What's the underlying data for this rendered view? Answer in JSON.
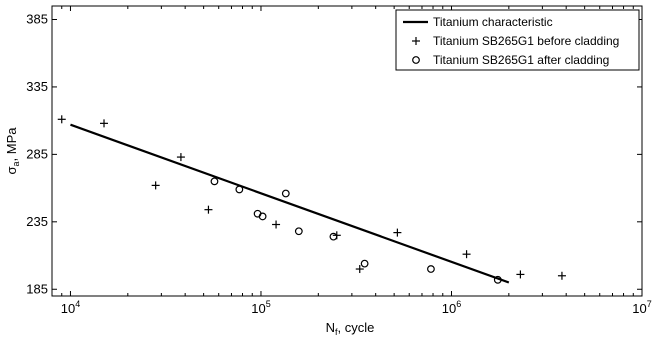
{
  "chart_data": {
    "type": "scatter",
    "xlabel": {
      "main": "N",
      "sub": "f",
      "rest": ", cycle"
    },
    "ylabel": {
      "main": "σ",
      "sub": "a",
      "rest": ", MPa"
    },
    "x_scale": "log",
    "xlim": [
      8000,
      10000000
    ],
    "ylim": [
      180,
      395
    ],
    "x_ticks": [
      {
        "value": 10000,
        "base": "10",
        "exp": "4"
      },
      {
        "value": 100000,
        "base": "10",
        "exp": "5"
      },
      {
        "value": 1000000,
        "base": "10",
        "exp": "6"
      },
      {
        "value": 10000000,
        "base": "10",
        "exp": "7"
      }
    ],
    "y_ticks": [
      185,
      235,
      285,
      335,
      385
    ],
    "grid": false,
    "legend_position": "top-right",
    "series": [
      {
        "name": "Titanium characteristic",
        "kind": "line",
        "color": "#000000",
        "x": [
          10000,
          2000000
        ],
        "y": [
          307,
          190
        ]
      },
      {
        "name": "Titanium SB265G1 before cladding",
        "kind": "plus",
        "color": "#000000",
        "x": [
          9000,
          15000,
          28000,
          38000,
          53000,
          120000,
          250000,
          330000,
          520000,
          1200000,
          2300000,
          3800000
        ],
        "y": [
          311,
          308,
          262,
          283,
          244,
          233,
          225,
          200,
          227,
          211,
          196,
          195
        ]
      },
      {
        "name": "Titanium SB265G1 after cladding",
        "kind": "circle",
        "color": "#000000",
        "x": [
          57000,
          77000,
          96000,
          102000,
          135000,
          158000,
          240000,
          350000,
          780000,
          1750000
        ],
        "y": [
          265,
          259,
          241,
          239,
          256,
          228,
          224,
          204,
          200,
          192
        ]
      }
    ]
  }
}
